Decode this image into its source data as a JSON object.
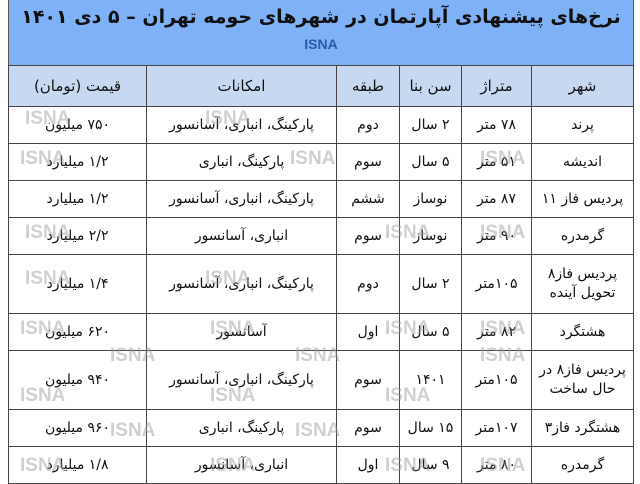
{
  "title": "نرخ‌های پیشنهادی آپارتمان در شهرهای حومه تهران – ۵ دی ۱۴۰۱",
  "source": "ISNA",
  "watermark": "ISNA",
  "colors": {
    "title_band": "#7eb1f6",
    "header_row": "#c6d9f1",
    "source_text": "#2a5aa6"
  },
  "columns": [
    "شهر",
    "متراژ",
    "سن بنا",
    "طبقه",
    "امکانات",
    "قیمت (تومان)"
  ],
  "rows": [
    [
      "پرند",
      "۷۸ متر",
      "۲ سال",
      "دوم",
      "پارکینگ، انباری، آسانسور",
      "۷۵۰ میلیون"
    ],
    [
      "اندیشه",
      "۵۱ متر",
      "۵ سال",
      "سوم",
      "پارکینگ، انباری",
      "۱/۲ میلیارد"
    ],
    [
      "پردیس فاز ۱۱",
      "۸۷ متر",
      "نوساز",
      "ششم",
      "پارکینگ، انباری، آسانسور",
      "۱/۲ میلیارد"
    ],
    [
      "گرمدره",
      "۹۰ متر",
      "نوساز",
      "سوم",
      "انباری، آسانسور",
      "۲/۲ میلیارد"
    ],
    [
      "پردیس فاز۸ تحویل آینده",
      "۱۰۵متر",
      "۲ سال",
      "دوم",
      "پارکینگ، انباری، آسانسور",
      "۱/۴ میلیارد"
    ],
    [
      "هشتگرد",
      "۸۲ متر",
      "۵ سال",
      "اول",
      "آسانسور",
      "۶۲۰ میلیون"
    ],
    [
      "پردیس فاز۸ در حال ساخت",
      "۱۰۵متر",
      "۱۴۰۱",
      "سوم",
      "پارکینگ، انباری، آسانسور",
      "۹۴۰ میلیون"
    ],
    [
      "هشتگرد فاز۳",
      "۱۰۷متر",
      "۱۵ سال",
      "سوم",
      "پارکینگ، انباری",
      "۹۶۰ میلیون"
    ],
    [
      "گرمدره",
      "۸۰ متر",
      "۹ سال",
      "اول",
      "انباری، آسانسور",
      "۱/۸ میلیارد"
    ]
  ]
}
